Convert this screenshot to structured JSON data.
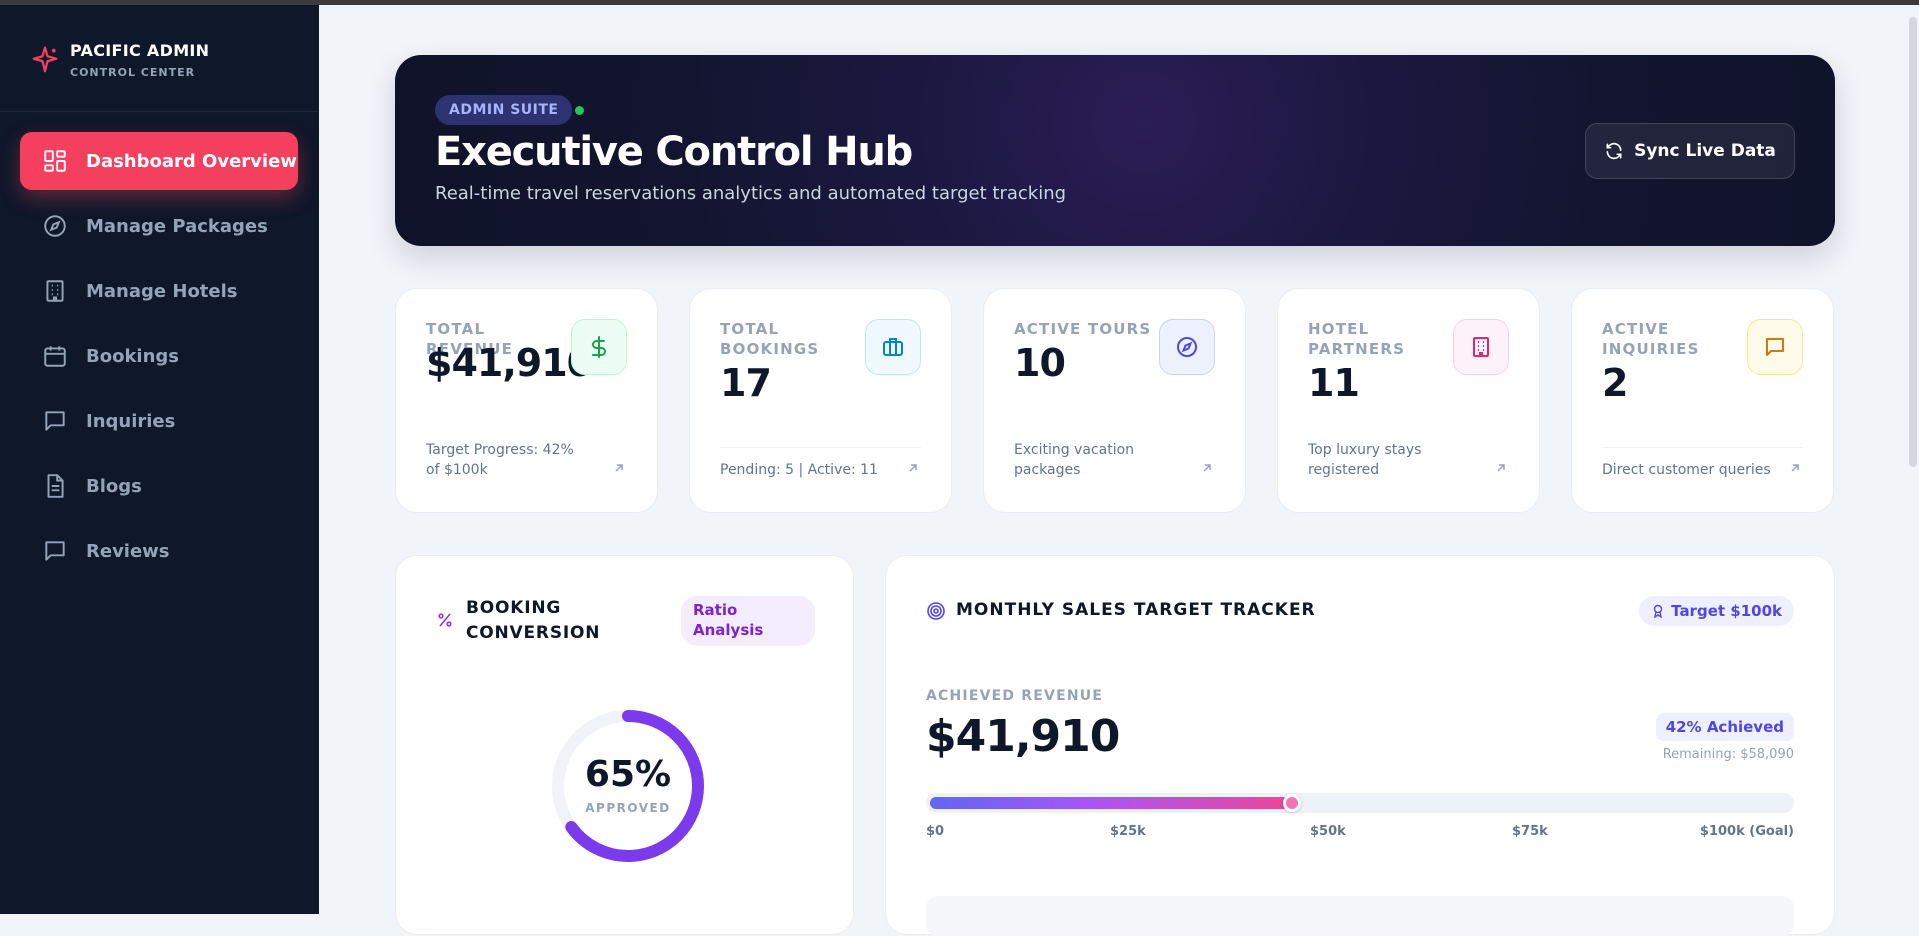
{
  "brand": {
    "title": "PACIFIC ADMIN",
    "subtitle": "CONTROL CENTER",
    "icon": "sparkle-icon",
    "accent": "#f43f5e"
  },
  "sidebar": {
    "items": [
      {
        "label": "Dashboard Overview",
        "icon": "dashboard-icon",
        "active": true
      },
      {
        "label": "Manage Packages",
        "icon": "compass-icon"
      },
      {
        "label": "Manage Hotels",
        "icon": "building-icon"
      },
      {
        "label": "Bookings",
        "icon": "calendar-icon"
      },
      {
        "label": "Inquiries",
        "icon": "message-icon"
      },
      {
        "label": "Blogs",
        "icon": "document-icon"
      },
      {
        "label": "Reviews",
        "icon": "message-icon"
      }
    ]
  },
  "hero": {
    "badge": "ADMIN SUITE",
    "title": "Executive Control Hub",
    "subtitle": "Real-time travel reservations analytics and automated target tracking",
    "sync_label": "Sync Live Data"
  },
  "stats": [
    {
      "label": "TOTAL REVENUE",
      "value": "$41,910",
      "footer": "Target Progress: 42% of $100k",
      "icon": "dollar-icon",
      "color": "#16a34a"
    },
    {
      "label": "TOTAL BOOKINGS",
      "value": "17",
      "footer": "Pending: 5 | Active: 11",
      "icon": "briefcase-icon",
      "color": "#0284c7"
    },
    {
      "label": "ACTIVE TOURS",
      "value": "10",
      "footer": "Exciting vacation packages",
      "icon": "compass-icon",
      "color": "#4f46e5"
    },
    {
      "label": "HOTEL PARTNERS",
      "value": "11",
      "footer": "Top luxury stays registered",
      "icon": "building-icon",
      "color": "#db2777"
    },
    {
      "label": "ACTIVE INQUIRIES",
      "value": "2",
      "footer": "Direct customer queries",
      "icon": "message-icon",
      "color": "#d97706"
    }
  ],
  "conversion": {
    "title": "BOOKING CONVERSION",
    "badge": "Ratio Analysis",
    "value_text": "65%",
    "value": 0.65,
    "caption": "APPROVED",
    "color": "#7c3aed"
  },
  "tracker": {
    "title": "MONTHLY SALES TARGET TRACKER",
    "target_badge": "Target $100k",
    "achieved_label": "ACHIEVED REVENUE",
    "achieved_value": "$41,910",
    "achieved_pct": "42% Achieved",
    "remaining": "Remaining: $58,090",
    "progress": 0.42,
    "ticks": [
      "$0",
      "$25k",
      "$50k",
      "$75k",
      "$100k (Goal)"
    ]
  }
}
